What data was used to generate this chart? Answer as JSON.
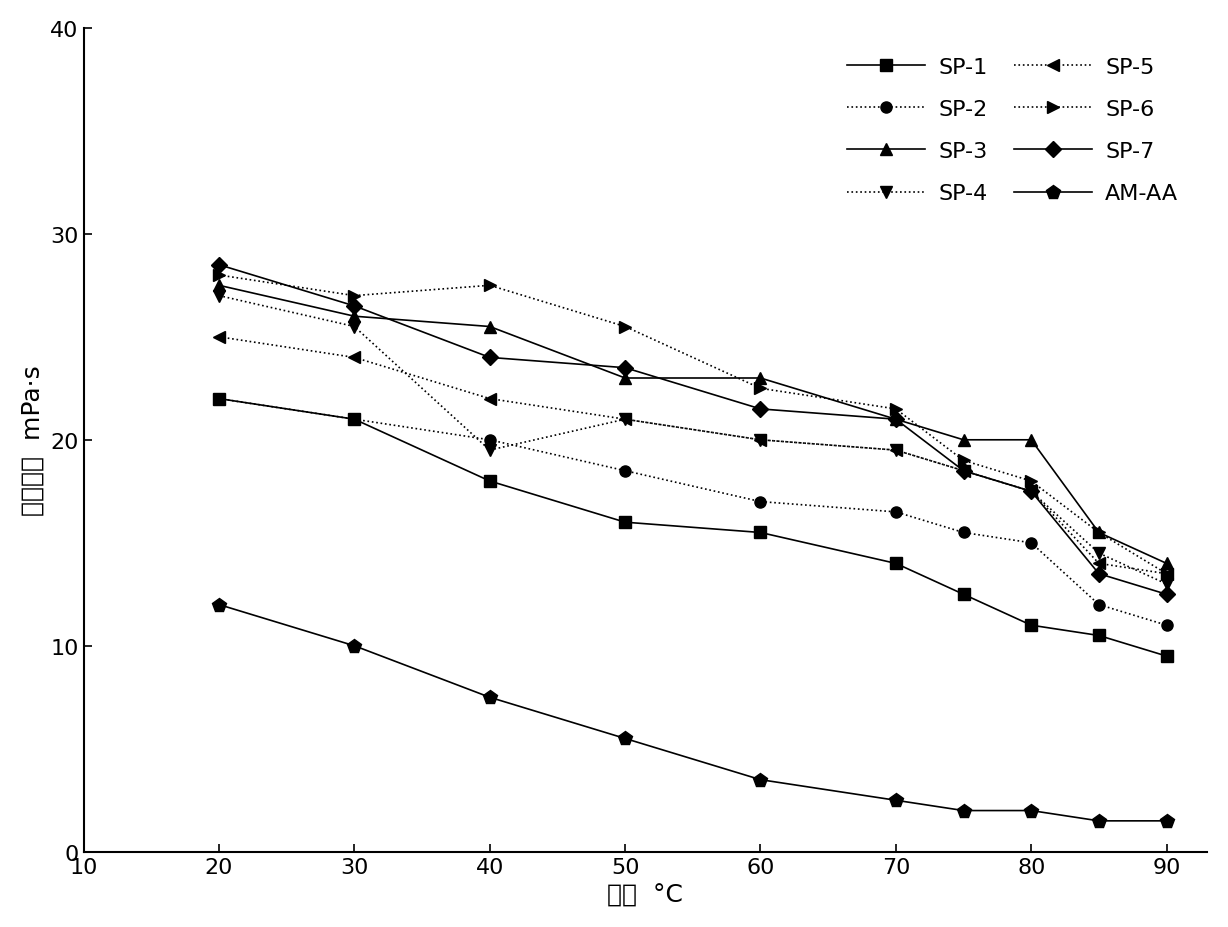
{
  "x": [
    20,
    30,
    40,
    50,
    60,
    70,
    75,
    80,
    85,
    90
  ],
  "series_order": [
    "SP-1",
    "SP-2",
    "SP-3",
    "SP-4",
    "SP-5",
    "SP-6",
    "SP-7",
    "AM-AA"
  ],
  "series_data": {
    "SP-1": [
      22.0,
      21.0,
      18.0,
      16.0,
      15.5,
      14.0,
      12.5,
      11.0,
      10.5,
      9.5
    ],
    "SP-2": [
      22.0,
      21.0,
      20.0,
      18.5,
      17.0,
      16.5,
      15.5,
      15.0,
      12.0,
      11.0
    ],
    "SP-3": [
      27.5,
      26.0,
      25.5,
      23.0,
      23.0,
      21.0,
      20.0,
      20.0,
      15.5,
      14.0
    ],
    "SP-4": [
      27.0,
      25.5,
      19.5,
      21.0,
      20.0,
      19.5,
      18.5,
      17.5,
      14.5,
      13.0
    ],
    "SP-5": [
      25.0,
      24.0,
      22.0,
      21.0,
      20.0,
      19.5,
      18.5,
      17.5,
      14.0,
      13.5
    ],
    "SP-6": [
      28.0,
      27.0,
      27.5,
      25.5,
      22.5,
      21.5,
      19.0,
      18.0,
      15.5,
      13.5
    ],
    "SP-7": [
      28.5,
      26.5,
      24.0,
      23.5,
      21.5,
      21.0,
      18.5,
      17.5,
      13.5,
      12.5
    ],
    "AM-AA": [
      12.0,
      10.0,
      7.5,
      5.5,
      3.5,
      2.5,
      2.0,
      2.0,
      1.5,
      1.5
    ]
  },
  "series_styles": {
    "SP-1": {
      "linestyle": "-",
      "marker": "s",
      "markersize": 8,
      "linewidth": 1.2
    },
    "SP-2": {
      "linestyle": ":",
      "marker": "o",
      "markersize": 8,
      "linewidth": 1.2
    },
    "SP-3": {
      "linestyle": "-",
      "marker": "^",
      "markersize": 9,
      "linewidth": 1.2
    },
    "SP-4": {
      "linestyle": ":",
      "marker": "v",
      "markersize": 9,
      "linewidth": 1.2
    },
    "SP-5": {
      "linestyle": ":",
      "marker": "<",
      "markersize": 9,
      "linewidth": 1.2
    },
    "SP-6": {
      "linestyle": ":",
      "marker": ">",
      "markersize": 9,
      "linewidth": 1.2
    },
    "SP-7": {
      "linestyle": "-",
      "marker": "D",
      "markersize": 8,
      "linewidth": 1.2
    },
    "AM-AA": {
      "linestyle": "-",
      "marker": "p",
      "markersize": 10,
      "linewidth": 1.2
    }
  },
  "xlim": [
    10,
    93
  ],
  "ylim": [
    0,
    40
  ],
  "xticks": [
    10,
    20,
    30,
    40,
    50,
    60,
    70,
    80,
    90
  ],
  "yticks": [
    0,
    10,
    20,
    30,
    40
  ],
  "xlabel": "温度  °C",
  "ylabel": "表观粘度  mPa·s",
  "color": "#000000",
  "figsize": [
    12.28,
    9.28
  ],
  "dpi": 100
}
